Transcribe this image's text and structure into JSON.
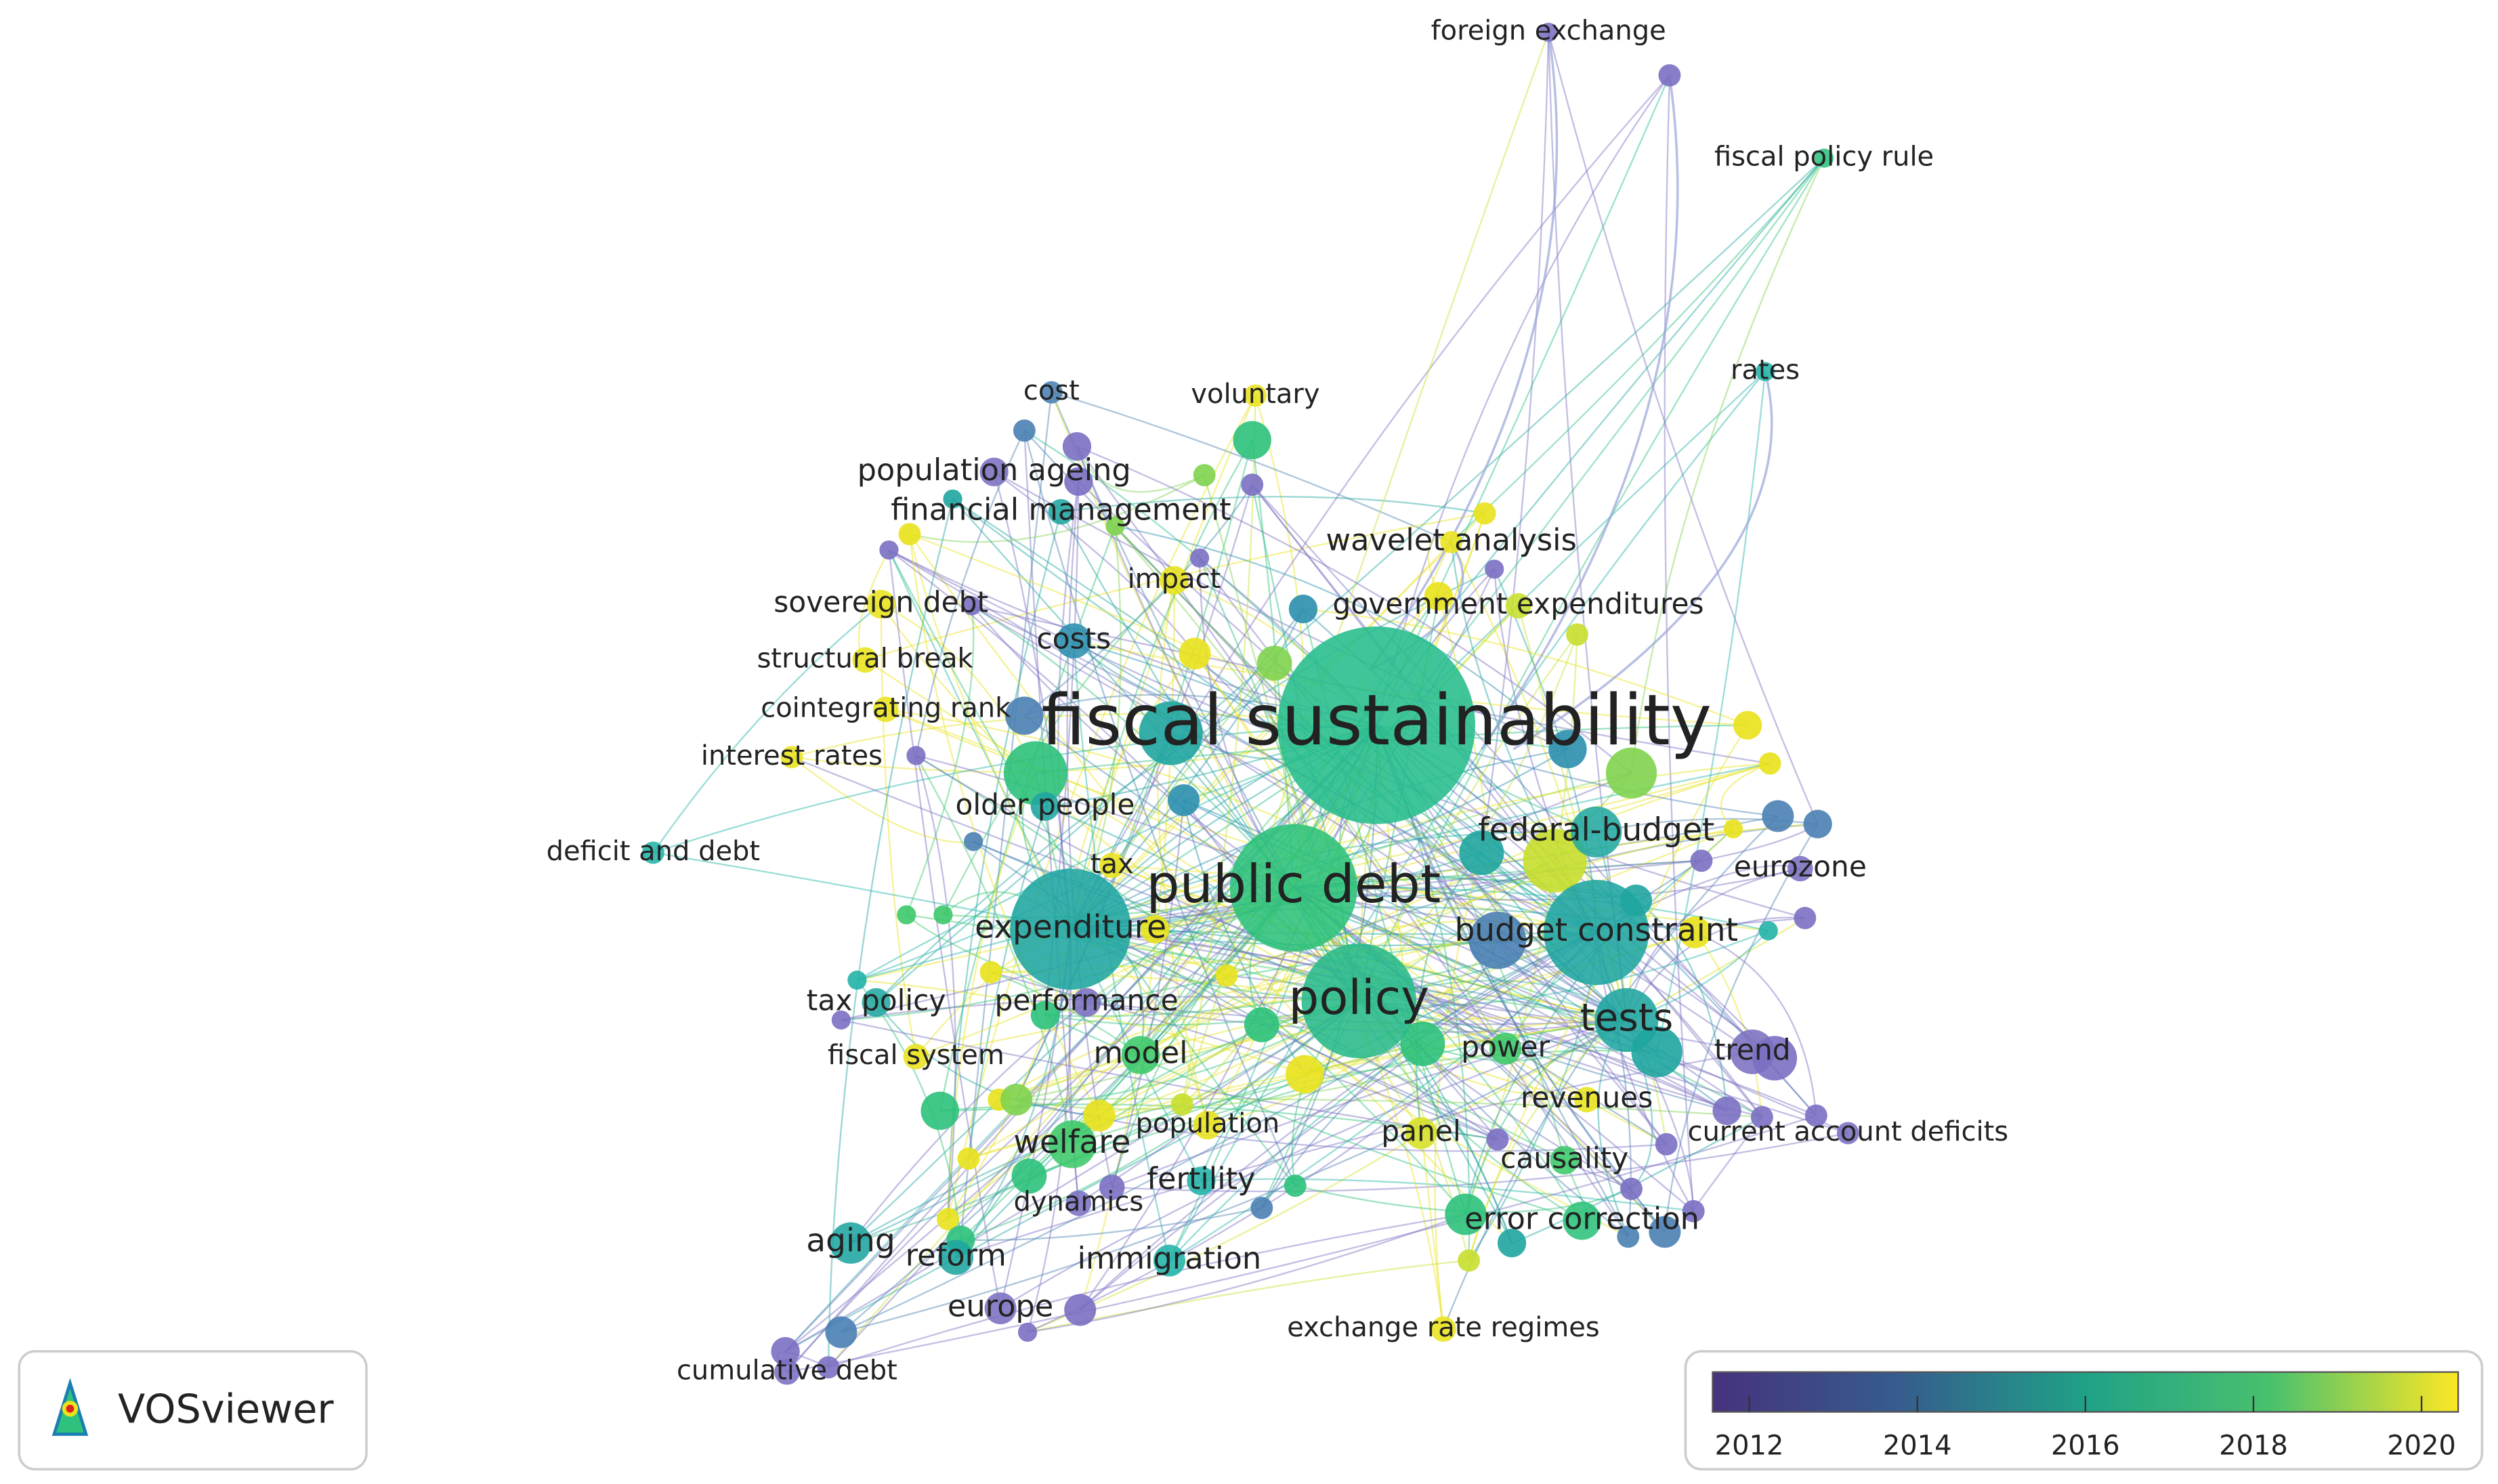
{
  "nodes": [
    {
      "label": "foreign exchange",
      "color": "#7a6fc2"
    },
    {
      "label": "fiscal policy rule",
      "color": "#2ec27e"
    },
    {
      "label": "rates",
      "color": "#22b3a8"
    },
    {
      "label": "voluntary",
      "color": "#e9e21c"
    },
    {
      "label": "cost",
      "color": "#4a80b2"
    },
    {
      "label": "population ageing",
      "color": "#7a6fc2"
    },
    {
      "label": "financial management",
      "color": "#1fa5a0"
    },
    {
      "label": "wavelet analysis",
      "color": "#e9e21c"
    },
    {
      "label": "impact",
      "color": "#e9e21c"
    },
    {
      "label": "sovereign debt",
      "color": "#e9e21c"
    },
    {
      "label": "government expenditures",
      "color": "#c8df2c"
    },
    {
      "label": "costs",
      "color": "#2b8fae"
    },
    {
      "label": "structural break",
      "color": "#e9e21c"
    },
    {
      "label": "fiscal sustainability",
      "color": "#25bd8c"
    },
    {
      "label": "cointegrating rank",
      "color": "#e9e21c"
    },
    {
      "label": "interest rates",
      "color": "#e9e21c"
    },
    {
      "label": "older people",
      "color": "#1fa5a0"
    },
    {
      "label": "federal-budget",
      "color": "#22a8a0"
    },
    {
      "label": "deficit and debt",
      "color": "#22b3a8"
    },
    {
      "label": "tax",
      "color": "#e9e21c"
    },
    {
      "label": "public debt",
      "color": "#2cc17a"
    },
    {
      "label": "eurozone",
      "color": "#7a6fc2"
    },
    {
      "label": "expenditure",
      "color": "#1fa5a0"
    },
    {
      "label": "budget constraint",
      "color": "#1fa5a0"
    },
    {
      "label": "policy",
      "color": "#28b98a"
    },
    {
      "label": "tax policy",
      "color": "#22a8a0"
    },
    {
      "label": "performance",
      "color": "#7a6fc2"
    },
    {
      "label": "trend",
      "color": "#7a6fc2"
    },
    {
      "label": "tests",
      "color": "#1fa5a0"
    },
    {
      "label": "power",
      "color": "#3cc86a"
    },
    {
      "label": "fiscal system",
      "color": "#e9e21c"
    },
    {
      "label": "model",
      "color": "#3cc86a"
    },
    {
      "label": "revenues",
      "color": "#e9e21c"
    },
    {
      "label": "current account deficits",
      "color": "#7a6fc2"
    },
    {
      "label": "panel",
      "color": "#d6e024"
    },
    {
      "label": "population",
      "color": "#e9e21c"
    },
    {
      "label": "welfare",
      "color": "#3cc86a"
    },
    {
      "label": "causality",
      "color": "#3cc86a"
    },
    {
      "label": "fertility",
      "color": "#22b3a8"
    },
    {
      "label": "dynamics",
      "color": "#7a6fc2"
    },
    {
      "label": "error correction",
      "color": "#2cc17a"
    },
    {
      "label": "aging",
      "color": "#1fa5a0"
    },
    {
      "label": "reform",
      "color": "#1fa5a0"
    },
    {
      "label": "immigration",
      "color": "#22b3a8"
    },
    {
      "label": "europe",
      "color": "#7a6fc2"
    },
    {
      "label": "exchange rate regimes",
      "color": "#e9e21c"
    },
    {
      "label": "cumulative debt",
      "color": "#7a6fc2"
    }
  ],
  "logo": {
    "text": "VOSviewer"
  },
  "legend": {
    "ticks": [
      2012,
      2014,
      2016,
      2018,
      2020
    ]
  }
}
